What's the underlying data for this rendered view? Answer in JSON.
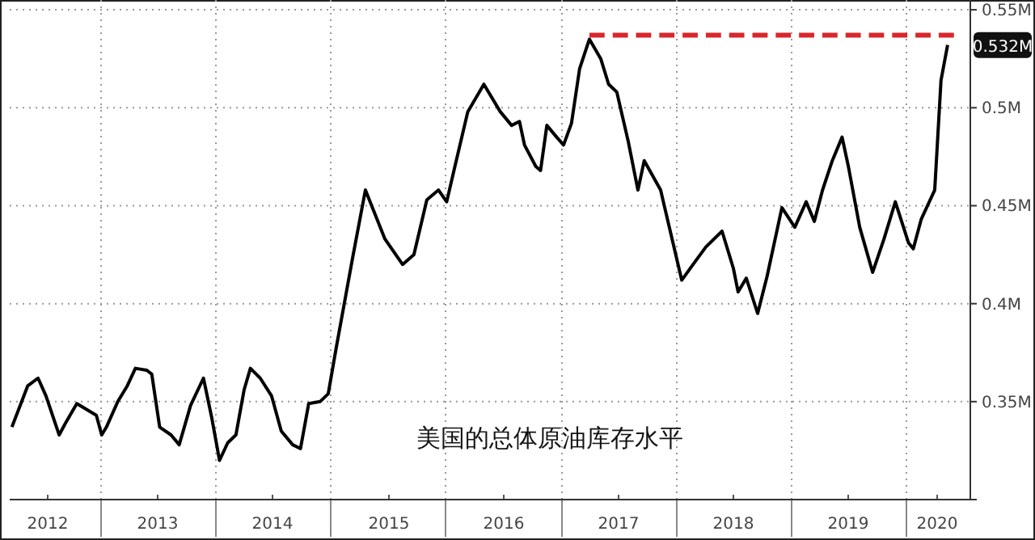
{
  "chart_data": {
    "type": "line",
    "annotations": [
      "美国的总体原油库存水平",
      "0.532M"
    ],
    "xlim": [
      "2012-03-20",
      "2020-07-25"
    ],
    "xticks": [
      {
        "value": "2013-01-01",
        "label": null
      },
      {
        "value": "2014-01-01",
        "label": null
      },
      {
        "value": "2015-01-01",
        "label": null
      },
      {
        "value": "2016-01-01",
        "label": null
      },
      {
        "value": "2017-01-01",
        "label": null
      },
      {
        "value": "2018-01-01",
        "label": null
      },
      {
        "value": "2019-01-01",
        "label": null
      },
      {
        "value": "2020-01-01",
        "label": null
      },
      {
        "value": "2012-07-15",
        "label": "2012"
      },
      {
        "value": "2013-07-02",
        "label": "2013"
      },
      {
        "value": "2014-07-02",
        "label": "2014"
      },
      {
        "value": "2015-07-02",
        "label": "2015"
      },
      {
        "value": "2016-07-02",
        "label": "2016"
      },
      {
        "value": "2017-07-02",
        "label": "2017"
      },
      {
        "value": "2018-07-02",
        "label": "2018"
      },
      {
        "value": "2019-07-02",
        "label": "2019"
      },
      {
        "value": "2020-04-10",
        "label": "2020"
      }
    ],
    "ylim": [
      0.3,
      0.555
    ],
    "yticks": [
      {
        "value": 0.3,
        "label": null
      },
      {
        "value": 0.35,
        "label": "0.35M"
      },
      {
        "value": 0.4,
        "label": "0.4M"
      },
      {
        "value": 0.45,
        "label": "0.45M"
      },
      {
        "value": 0.5,
        "label": "0.5M"
      },
      {
        "value": 0.55,
        "label": "0.55M"
      }
    ],
    "grid": true,
    "series": [
      {
        "color": "#000000",
        "x": [
          "2012-03-27",
          "2012-05-16",
          "2012-06-18",
          "2012-07-13",
          "2012-08-24",
          "2012-09-13",
          "2012-10-19",
          "2012-11-19",
          "2012-12-20",
          "2013-01-06",
          "2013-01-21",
          "2013-02-26",
          "2013-03-28",
          "2013-04-23",
          "2013-05-29",
          "2013-06-14",
          "2013-07-09",
          "2013-08-14",
          "2013-09-09",
          "2013-10-15",
          "2013-11-25",
          "2013-12-21",
          "2014-01-15",
          "2014-02-10",
          "2014-03-08",
          "2014-04-03",
          "2014-04-23",
          "2014-05-24",
          "2014-06-29",
          "2014-07-30",
          "2014-09-04",
          "2014-09-29",
          "2014-10-25",
          "2014-11-30",
          "2014-12-26",
          "2015-01-21",
          "2015-03-13",
          "2015-04-23",
          "2015-06-24",
          "2015-08-19",
          "2015-09-24",
          "2015-11-04",
          "2015-12-11",
          "2016-01-06",
          "2016-02-01",
          "2016-03-13",
          "2016-05-03",
          "2016-06-24",
          "2016-07-30",
          "2016-08-24",
          "2016-09-09",
          "2016-10-15",
          "2016-10-30",
          "2016-11-19",
          "2016-12-20",
          "2017-01-11",
          "2017-02-05",
          "2017-03-03",
          "2017-04-03",
          "2017-05-09",
          "2017-06-03",
          "2017-06-29",
          "2017-08-04",
          "2017-09-04",
          "2017-09-24",
          "2017-11-15",
          "2018-01-21",
          "2018-02-26",
          "2018-04-08",
          "2018-05-29",
          "2018-07-04",
          "2018-07-19",
          "2018-08-14",
          "2018-09-19",
          "2018-10-19",
          "2018-12-05",
          "2019-01-15",
          "2019-02-20",
          "2019-03-18",
          "2019-04-13",
          "2019-05-14",
          "2019-06-14",
          "2019-07-04",
          "2019-08-09",
          "2019-09-19",
          "2019-10-25",
          "2019-11-30",
          "2020-01-11",
          "2020-01-26",
          "2020-02-20",
          "2020-04-03",
          "2020-04-23",
          "2020-05-14"
        ],
        "values": [
          0.337,
          0.358,
          0.362,
          0.353,
          0.333,
          0.339,
          0.349,
          0.346,
          0.343,
          0.333,
          0.337,
          0.35,
          0.358,
          0.367,
          0.366,
          0.364,
          0.337,
          0.333,
          0.328,
          0.348,
          0.362,
          0.342,
          0.32,
          0.329,
          0.333,
          0.356,
          0.367,
          0.362,
          0.353,
          0.335,
          0.328,
          0.326,
          0.349,
          0.35,
          0.354,
          0.378,
          0.423,
          0.458,
          0.433,
          0.42,
          0.425,
          0.453,
          0.458,
          0.452,
          0.47,
          0.498,
          0.512,
          0.498,
          0.491,
          0.493,
          0.481,
          0.47,
          0.468,
          0.491,
          0.485,
          0.481,
          0.492,
          0.52,
          0.535,
          0.525,
          0.512,
          0.508,
          0.483,
          0.458,
          0.473,
          0.458,
          0.412,
          0.42,
          0.429,
          0.437,
          0.418,
          0.406,
          0.413,
          0.395,
          0.414,
          0.449,
          0.439,
          0.452,
          0.442,
          0.458,
          0.473,
          0.485,
          0.47,
          0.439,
          0.416,
          0.433,
          0.452,
          0.431,
          0.428,
          0.443,
          0.458,
          0.514,
          0.532
        ]
      },
      {
        "color": "#d9262b",
        "line_style": "dashed",
        "x": [
          "2017-04-03",
          "2020-06-03"
        ],
        "values": [
          0.537,
          0.537
        ]
      }
    ]
  }
}
